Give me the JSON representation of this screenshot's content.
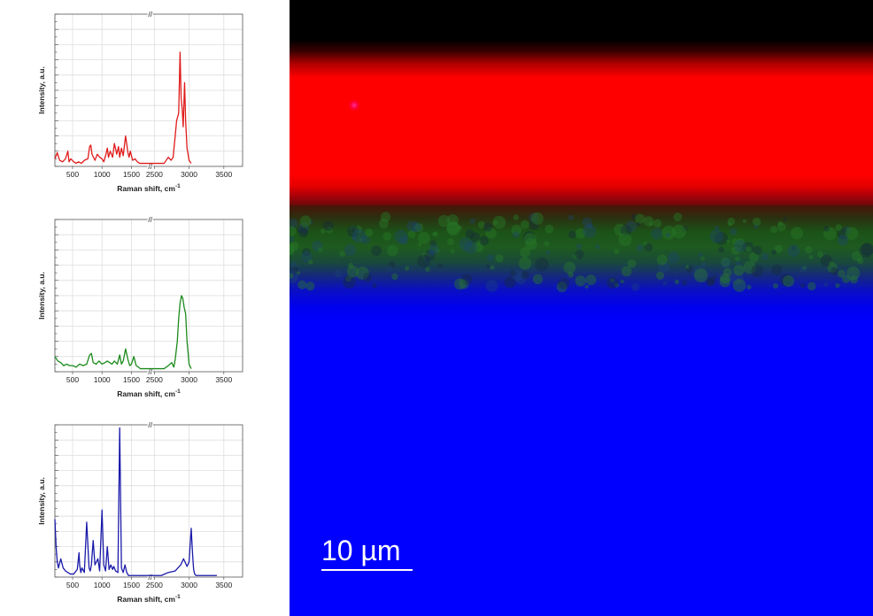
{
  "chart_data": [
    {
      "type": "line",
      "color": "#e01a1a",
      "xlabel": "Raman shift, cm",
      "xlabel_sup": "-1",
      "ylabel": "Intensity, a.u.",
      "x_ticks": [
        "500",
        "1000",
        "1500",
        "2500",
        "3000",
        "3500"
      ],
      "axis_break": "//",
      "xlim": [
        200,
        3500
      ],
      "ylim": [
        0,
        1
      ],
      "grid": true,
      "series": [
        {
          "x": [
            200,
            240,
            280,
            330,
            380,
            420,
            440,
            470,
            520,
            560,
            600,
            650,
            700,
            760,
            790,
            810,
            830,
            880,
            920,
            960,
            1000,
            1030,
            1060,
            1090,
            1110,
            1140,
            1180,
            1210,
            1250,
            1280,
            1300,
            1330,
            1360,
            1400,
            1440,
            1460,
            1480,
            1520,
            1560,
            1600,
            1640,
            2640,
            2700,
            2740,
            2770,
            2800,
            2820,
            2850,
            2870,
            2885,
            2900,
            2915,
            2935,
            2950,
            2970,
            3000,
            3030
          ],
          "y": [
            0.05,
            0.09,
            0.04,
            0.03,
            0.05,
            0.1,
            0.03,
            0.05,
            0.03,
            0.02,
            0.03,
            0.02,
            0.04,
            0.05,
            0.13,
            0.14,
            0.08,
            0.04,
            0.08,
            0.06,
            0.05,
            0.03,
            0.07,
            0.12,
            0.06,
            0.1,
            0.06,
            0.15,
            0.08,
            0.13,
            0.06,
            0.12,
            0.07,
            0.2,
            0.09,
            0.06,
            0.1,
            0.04,
            0.05,
            0.03,
            0.02,
            0.02,
            0.06,
            0.04,
            0.06,
            0.2,
            0.3,
            0.35,
            0.75,
            0.45,
            0.38,
            0.26,
            0.55,
            0.3,
            0.12,
            0.04,
            0.02
          ]
        }
      ]
    },
    {
      "type": "line",
      "color": "#1a8a1a",
      "xlabel": "Raman shift, cm",
      "xlabel_sup": "-1",
      "ylabel": "Intensity, a.u.",
      "x_ticks": [
        "500",
        "1000",
        "1500",
        "2500",
        "3000",
        "3500"
      ],
      "axis_break": "//",
      "xlim": [
        200,
        3500
      ],
      "ylim": [
        0,
        1
      ],
      "grid": true,
      "series": [
        {
          "x": [
            200,
            250,
            300,
            350,
            400,
            450,
            500,
            560,
            620,
            680,
            740,
            790,
            820,
            850,
            900,
            950,
            1000,
            1050,
            1090,
            1130,
            1170,
            1210,
            1260,
            1300,
            1330,
            1360,
            1400,
            1440,
            1470,
            1500,
            1540,
            1580,
            1620,
            1650,
            2640,
            2700,
            2750,
            2780,
            2800,
            2830,
            2850,
            2870,
            2890,
            2910,
            2930,
            2950,
            2970,
            3000,
            3030
          ],
          "y": [
            0.1,
            0.07,
            0.06,
            0.04,
            0.05,
            0.04,
            0.04,
            0.03,
            0.05,
            0.04,
            0.05,
            0.11,
            0.12,
            0.06,
            0.05,
            0.07,
            0.05,
            0.06,
            0.07,
            0.06,
            0.05,
            0.07,
            0.05,
            0.11,
            0.05,
            0.07,
            0.15,
            0.08,
            0.04,
            0.05,
            0.1,
            0.04,
            0.03,
            0.02,
            0.02,
            0.04,
            0.06,
            0.03,
            0.08,
            0.2,
            0.35,
            0.45,
            0.5,
            0.48,
            0.42,
            0.38,
            0.2,
            0.05,
            0.02
          ]
        }
      ]
    },
    {
      "type": "line",
      "color": "#1a1aaa",
      "xlabel": "Raman shift, cm",
      "xlabel_sup": "-1",
      "ylabel": "Intensity, a.u.",
      "x_ticks": [
        "500",
        "1000",
        "1500",
        "2500",
        "3000",
        "3500"
      ],
      "axis_break": "//",
      "xlim": [
        200,
        3500
      ],
      "ylim": [
        0,
        1
      ],
      "grid": true,
      "series": [
        {
          "x": [
            200,
            220,
            240,
            260,
            300,
            340,
            380,
            420,
            460,
            520,
            580,
            610,
            620,
            640,
            660,
            700,
            740,
            780,
            800,
            820,
            850,
            880,
            930,
            960,
            1000,
            1030,
            1060,
            1090,
            1120,
            1150,
            1180,
            1200,
            1230,
            1270,
            1300,
            1330,
            1360,
            1390,
            1420,
            1450,
            1480,
            1510,
            1540,
            1560,
            1580,
            1600,
            1620,
            1640,
            1660,
            1700,
            1760,
            2600,
            2700,
            2800,
            2880,
            2920,
            2950,
            2970,
            3000,
            3030,
            3050,
            3065,
            3080,
            3100,
            3130,
            3200,
            3300,
            3400
          ],
          "y": [
            0.38,
            0.2,
            0.1,
            0.06,
            0.12,
            0.06,
            0.04,
            0.03,
            0.02,
            0.02,
            0.05,
            0.16,
            0.08,
            0.03,
            0.06,
            0.03,
            0.36,
            0.06,
            0.04,
            0.08,
            0.24,
            0.08,
            0.12,
            0.04,
            0.44,
            0.08,
            0.04,
            0.2,
            0.05,
            0.08,
            0.05,
            0.07,
            0.04,
            0.03,
            0.98,
            0.06,
            0.03,
            0.08,
            0.03,
            0.01,
            0.01,
            0.01,
            0.01,
            0.01,
            0.01,
            0.01,
            0.01,
            0.01,
            0.01,
            0.01,
            0.01,
            0.01,
            0.03,
            0.04,
            0.08,
            0.12,
            0.09,
            0.07,
            0.1,
            0.32,
            0.15,
            0.05,
            0.02,
            0.01,
            0.01,
            0.01,
            0.01,
            0.01
          ]
        }
      ]
    }
  ],
  "image_panel": {
    "scale_bar_label": "10 µm",
    "layer_colors": [
      "#000000",
      "#ff0000",
      "#1e5a20",
      "#0000ff"
    ]
  }
}
